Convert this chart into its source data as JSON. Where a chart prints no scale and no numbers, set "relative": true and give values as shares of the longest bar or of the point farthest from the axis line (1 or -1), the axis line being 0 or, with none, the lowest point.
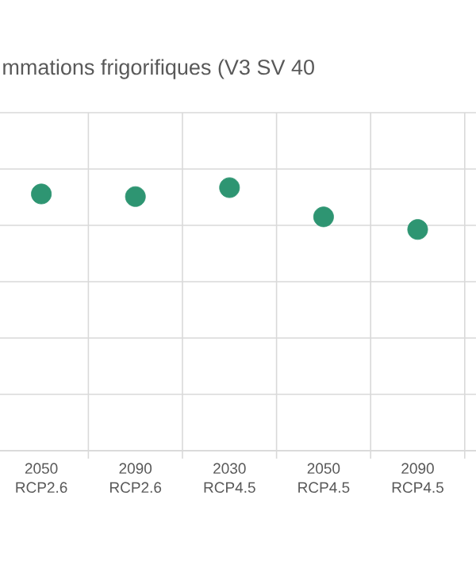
{
  "chart_data": {
    "type": "scatter",
    "title": "mmations frigorifiques (V3 SV 40",
    "categories": [
      "2050 RCP2.6",
      "2090 RCP2.6",
      "2030 RCP4.5",
      "2050 RCP4.5",
      "2090 RCP4.5"
    ],
    "relative": true,
    "series": [
      {
        "color": "#2e9572",
        "values": [
          0.976,
          0.966,
          1,
          0.889,
          0.841
        ]
      }
    ],
    "grid": true,
    "legend": false
  }
}
